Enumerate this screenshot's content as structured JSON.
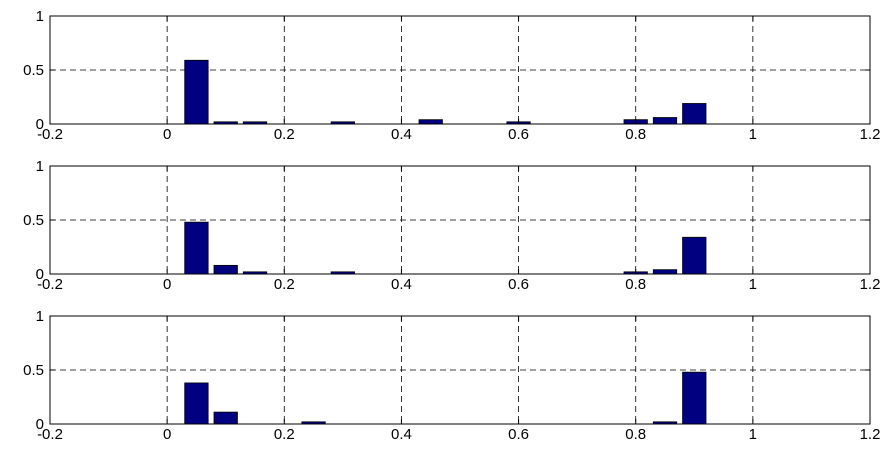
{
  "chart_data": [
    {
      "type": "bar",
      "title": "",
      "xlabel": "",
      "ylabel": "",
      "xlim": [
        -0.2,
        1.2
      ],
      "ylim": [
        0,
        1
      ],
      "xticks": [
        "-0.2",
        "0",
        "0.2",
        "0.4",
        "0.6",
        "0.8",
        "1",
        "1.2"
      ],
      "yticks": [
        "0",
        "0.5",
        "1"
      ],
      "grid": true,
      "bar_color": "#000080",
      "x": [
        0.05,
        0.1,
        0.15,
        0.3,
        0.45,
        0.6,
        0.8,
        0.85,
        0.9
      ],
      "values": [
        0.59,
        0.02,
        0.02,
        0.02,
        0.04,
        0.02,
        0.04,
        0.06,
        0.19
      ]
    },
    {
      "type": "bar",
      "title": "",
      "xlabel": "",
      "ylabel": "",
      "xlim": [
        -0.2,
        1.2
      ],
      "ylim": [
        0,
        1
      ],
      "xticks": [
        "-0.2",
        "0",
        "0.2",
        "0.4",
        "0.6",
        "0.8",
        "1",
        "1.2"
      ],
      "yticks": [
        "0",
        "0.5",
        "1"
      ],
      "grid": true,
      "bar_color": "#000080",
      "x": [
        0.05,
        0.1,
        0.15,
        0.3,
        0.8,
        0.85,
        0.9
      ],
      "values": [
        0.48,
        0.08,
        0.02,
        0.02,
        0.02,
        0.04,
        0.34
      ]
    },
    {
      "type": "bar",
      "title": "",
      "xlabel": "",
      "ylabel": "",
      "xlim": [
        -0.2,
        1.2
      ],
      "ylim": [
        0,
        1
      ],
      "xticks": [
        "-0.2",
        "0",
        "0.2",
        "0.4",
        "0.6",
        "0.8",
        "1",
        "1.2"
      ],
      "yticks": [
        "0",
        "0.5",
        "1"
      ],
      "grid": true,
      "bar_color": "#000080",
      "x": [
        0.05,
        0.1,
        0.25,
        0.85,
        0.9
      ],
      "values": [
        0.38,
        0.11,
        0.02,
        0.02,
        0.48
      ]
    }
  ]
}
